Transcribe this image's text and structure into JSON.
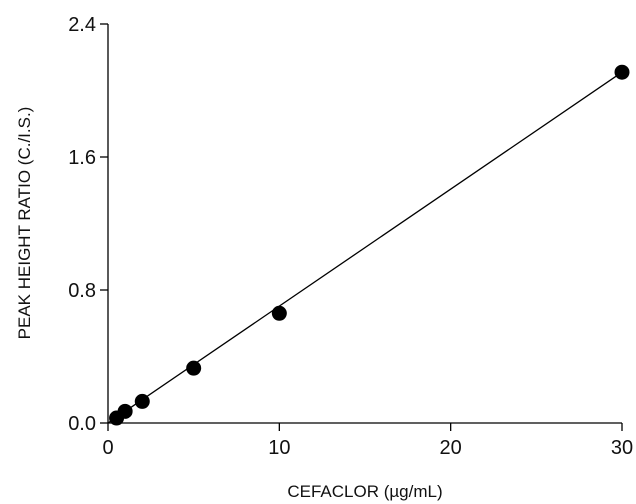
{
  "chart_data": {
    "type": "scatter",
    "title": "",
    "xlabel": "CEFACLOR (µg/mL)",
    "ylabel": "PEAK HEIGHT RATIO (C./I.S.)",
    "xlim": [
      0,
      30
    ],
    "ylim": [
      0,
      2.4
    ],
    "x_ticks": [
      "0",
      "10",
      "20",
      "30"
    ],
    "y_ticks": [
      "0.0",
      "0.8",
      "1.6",
      "2.4"
    ],
    "grid": false,
    "legend": "none",
    "marker_color": "#000000",
    "line_color": "#000000",
    "series": [
      {
        "points": [
          {
            "x": 0.5,
            "y": 0.03
          },
          {
            "x": 1,
            "y": 0.07
          },
          {
            "x": 2,
            "y": 0.13
          },
          {
            "x": 5,
            "y": 0.33
          },
          {
            "x": 10,
            "y": 0.66
          },
          {
            "x": 30,
            "y": 2.11
          }
        ]
      }
    ],
    "fit_line": {
      "from": {
        "x": 0,
        "y": 0
      },
      "to": {
        "x": 30,
        "y": 2.11
      }
    }
  }
}
